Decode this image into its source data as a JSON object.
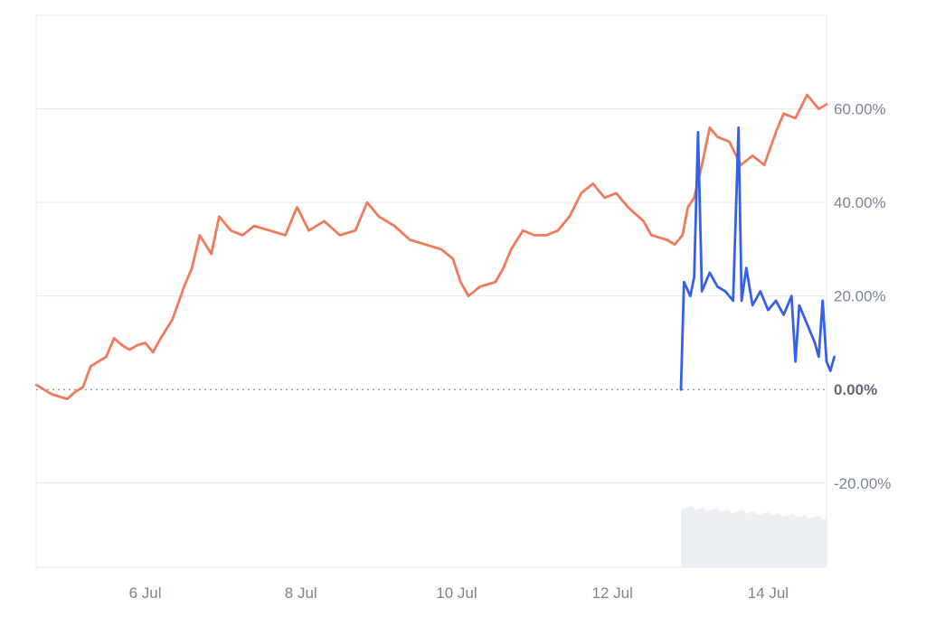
{
  "chart_data": {
    "type": "line",
    "title": "",
    "xlabel": "",
    "ylabel": "",
    "x_tick_labels": [
      "6 Jul",
      "8 Jul",
      "10 Jul",
      "12 Jul",
      "14 Jul"
    ],
    "x_tick_days": [
      6,
      8,
      10,
      12,
      14
    ],
    "x_range_days": [
      4.6,
      14.75
    ],
    "y_tick_labels": [
      "60.00%",
      "40.00%",
      "20.00%",
      "0.00%",
      "-20.00%"
    ],
    "y_tick_values": [
      60,
      40,
      20,
      0,
      -20
    ],
    "ylim": [
      -38,
      80
    ],
    "grid": true,
    "zero_line": "dotted",
    "volume_shading": {
      "start_day": 12.88,
      "end_day": 14.75,
      "level": "low",
      "color": "#eceff3"
    },
    "series": [
      {
        "color": "#f07a5a",
        "points": [
          [
            4.6,
            1
          ],
          [
            4.8,
            -1
          ],
          [
            5.0,
            -2
          ],
          [
            5.1,
            -0.5
          ],
          [
            5.2,
            0.5
          ],
          [
            5.3,
            5
          ],
          [
            5.4,
            6
          ],
          [
            5.5,
            7
          ],
          [
            5.6,
            11
          ],
          [
            5.7,
            9.5
          ],
          [
            5.8,
            8.5
          ],
          [
            5.9,
            9.5
          ],
          [
            6.0,
            10
          ],
          [
            6.1,
            8
          ],
          [
            6.2,
            11
          ],
          [
            6.35,
            15
          ],
          [
            6.5,
            22
          ],
          [
            6.6,
            26
          ],
          [
            6.7,
            33
          ],
          [
            6.85,
            29
          ],
          [
            6.95,
            37
          ],
          [
            7.1,
            34
          ],
          [
            7.25,
            33
          ],
          [
            7.4,
            35
          ],
          [
            7.6,
            34
          ],
          [
            7.8,
            33
          ],
          [
            7.95,
            39
          ],
          [
            8.1,
            34
          ],
          [
            8.3,
            36
          ],
          [
            8.5,
            33
          ],
          [
            8.7,
            34
          ],
          [
            8.85,
            40
          ],
          [
            9.0,
            37
          ],
          [
            9.2,
            35
          ],
          [
            9.4,
            32
          ],
          [
            9.6,
            31
          ],
          [
            9.8,
            30
          ],
          [
            9.95,
            28
          ],
          [
            10.05,
            23
          ],
          [
            10.15,
            20
          ],
          [
            10.3,
            22
          ],
          [
            10.5,
            23
          ],
          [
            10.6,
            26
          ],
          [
            10.7,
            30
          ],
          [
            10.85,
            34
          ],
          [
            11.0,
            33
          ],
          [
            11.15,
            33
          ],
          [
            11.3,
            34
          ],
          [
            11.45,
            37
          ],
          [
            11.6,
            42
          ],
          [
            11.75,
            44
          ],
          [
            11.9,
            41
          ],
          [
            12.05,
            42
          ],
          [
            12.2,
            39
          ],
          [
            12.4,
            36
          ],
          [
            12.5,
            33
          ],
          [
            12.7,
            32
          ],
          [
            12.8,
            31
          ],
          [
            12.9,
            33
          ],
          [
            12.97,
            39
          ],
          [
            13.05,
            41
          ],
          [
            13.15,
            48
          ],
          [
            13.25,
            56
          ],
          [
            13.35,
            54
          ],
          [
            13.5,
            53
          ],
          [
            13.65,
            48
          ],
          [
            13.8,
            50
          ],
          [
            13.95,
            48
          ],
          [
            14.1,
            55
          ],
          [
            14.2,
            59
          ],
          [
            14.35,
            58
          ],
          [
            14.5,
            63
          ],
          [
            14.65,
            60
          ],
          [
            14.75,
            61
          ]
        ]
      },
      {
        "color": "#3560e8",
        "points": [
          [
            12.88,
            0
          ],
          [
            12.92,
            23
          ],
          [
            13.0,
            20
          ],
          [
            13.05,
            24
          ],
          [
            13.1,
            55
          ],
          [
            13.15,
            21
          ],
          [
            13.25,
            25
          ],
          [
            13.35,
            22
          ],
          [
            13.45,
            21
          ],
          [
            13.55,
            19
          ],
          [
            13.62,
            56
          ],
          [
            13.66,
            19
          ],
          [
            13.72,
            26
          ],
          [
            13.8,
            18
          ],
          [
            13.9,
            21
          ],
          [
            14.0,
            17
          ],
          [
            14.1,
            19
          ],
          [
            14.2,
            16
          ],
          [
            14.3,
            20
          ],
          [
            14.35,
            6
          ],
          [
            14.4,
            18
          ],
          [
            14.5,
            14
          ],
          [
            14.6,
            10
          ],
          [
            14.65,
            7
          ],
          [
            14.7,
            19
          ],
          [
            14.75,
            6
          ],
          [
            14.8,
            4
          ],
          [
            14.85,
            7
          ]
        ]
      }
    ]
  }
}
